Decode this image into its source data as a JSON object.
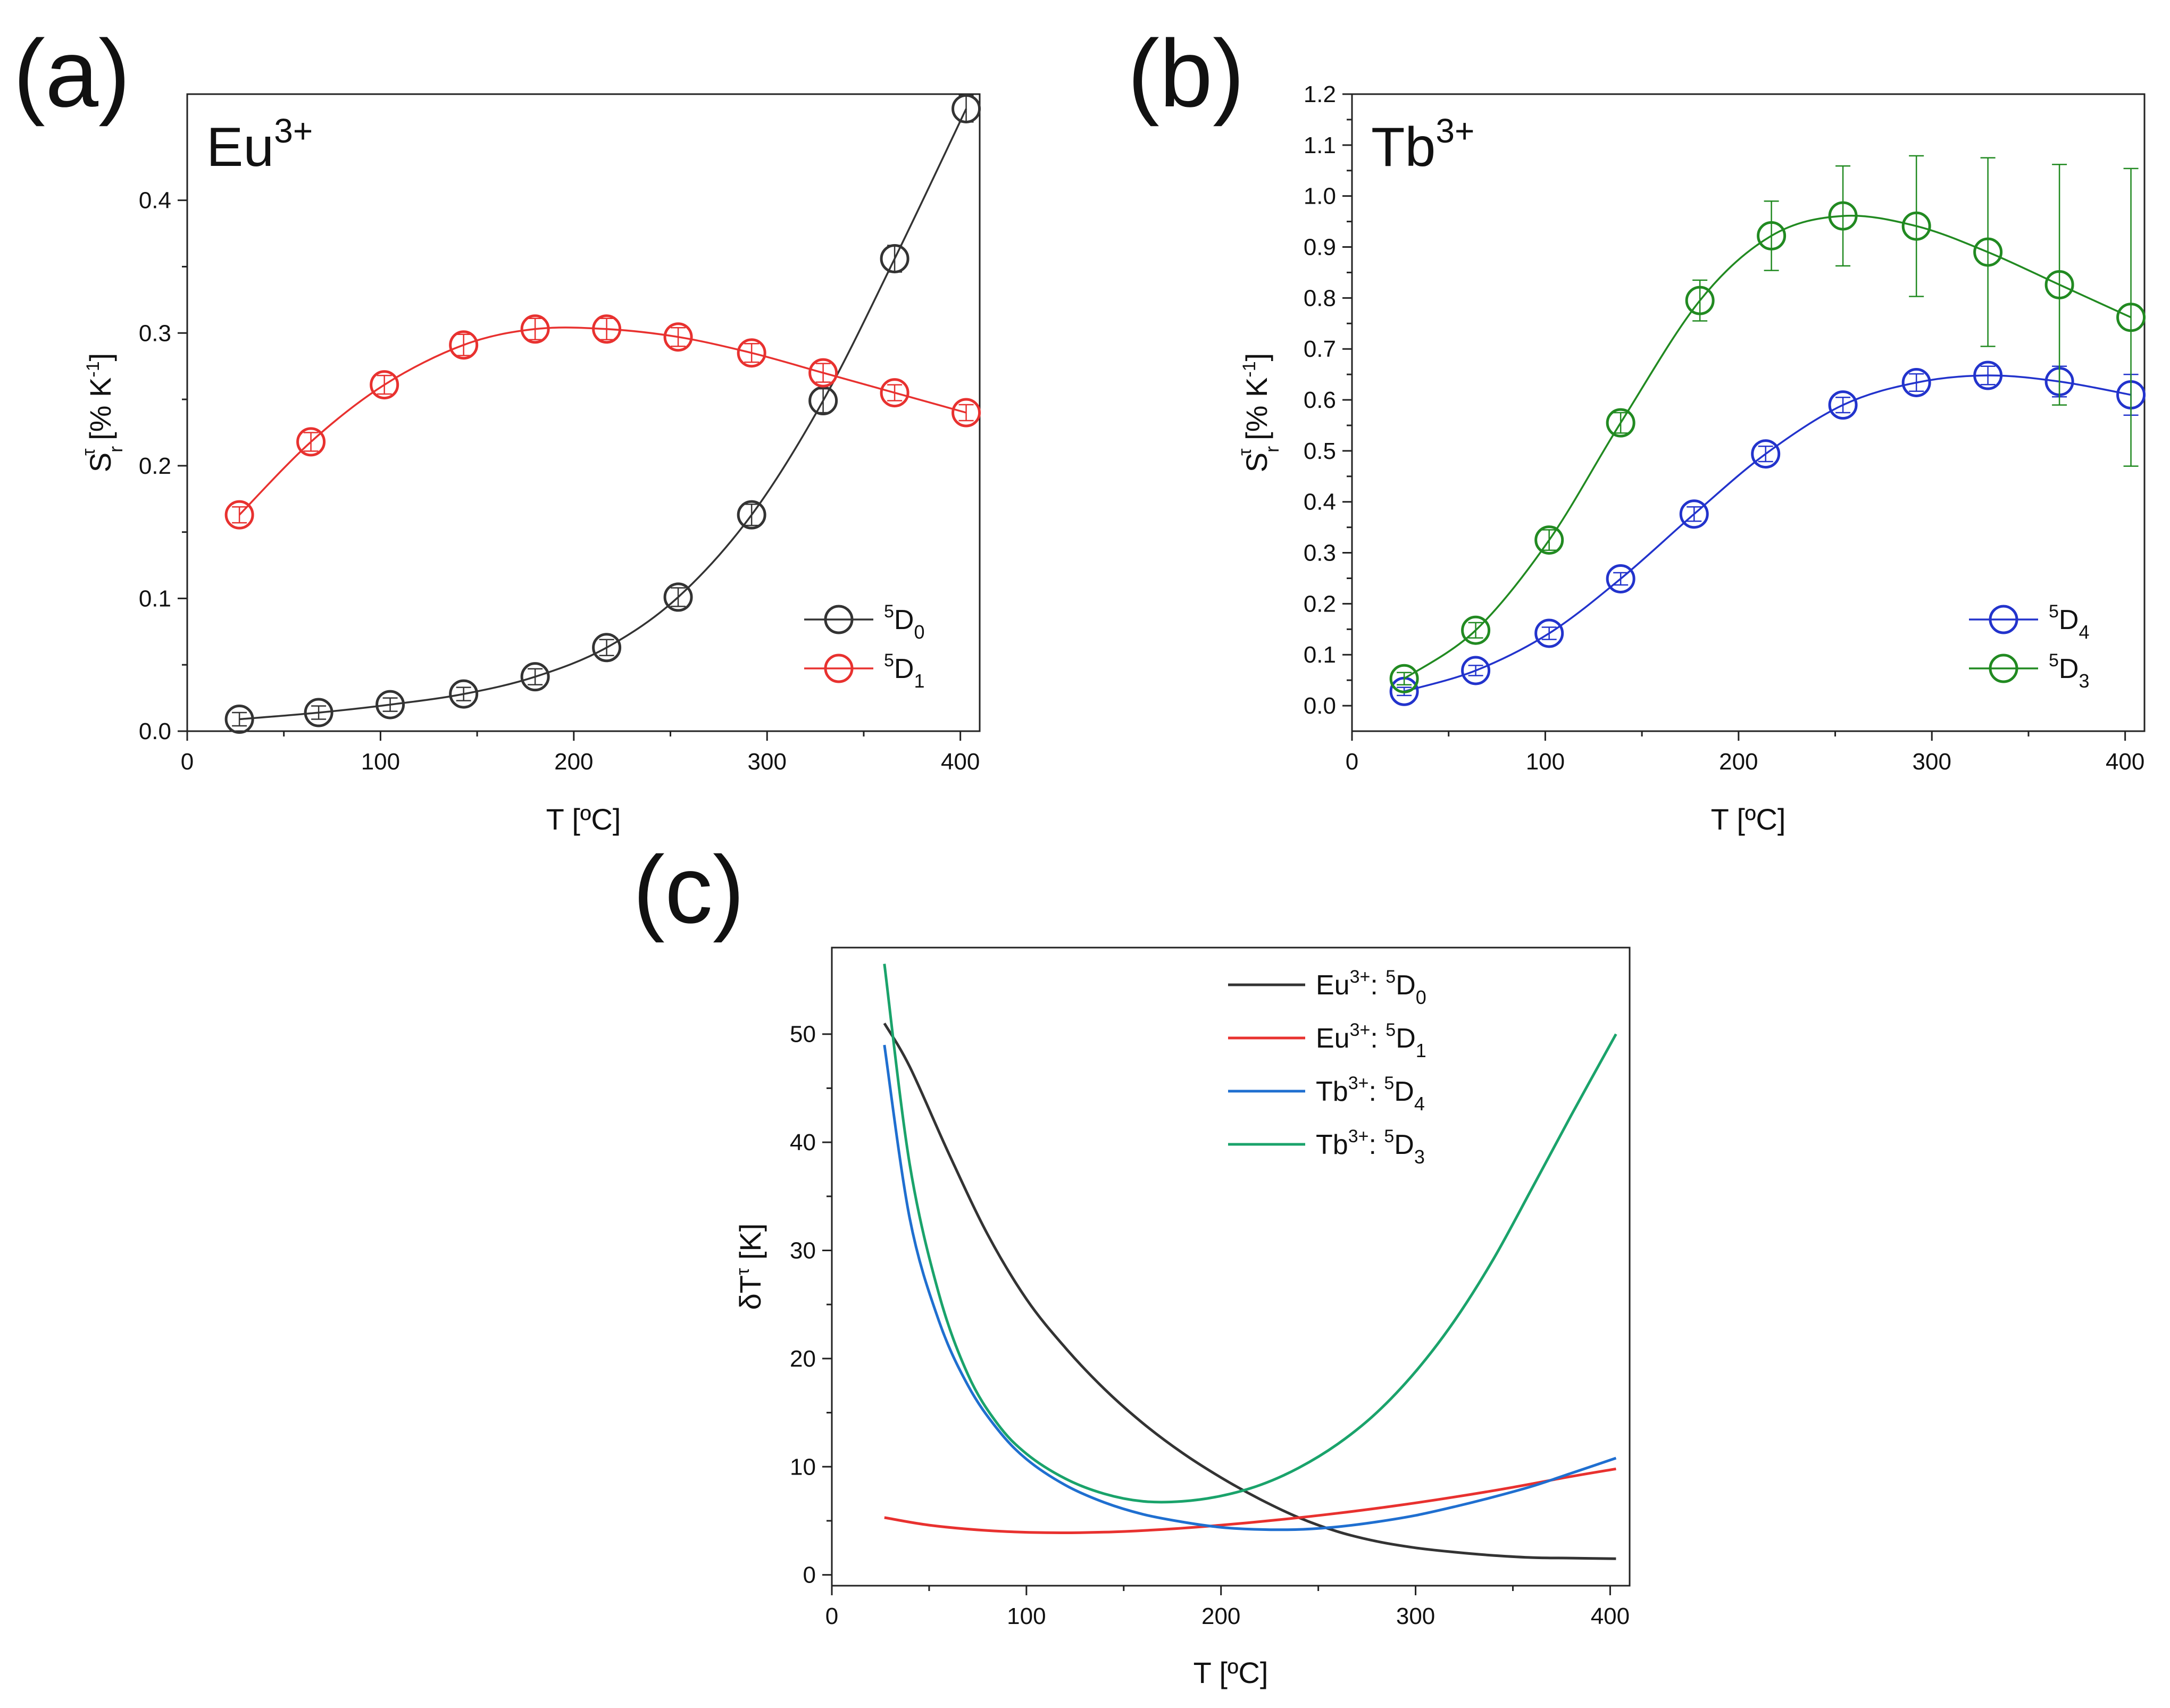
{
  "panels": {
    "a": {
      "letter": "(a)",
      "ion": "Eu",
      "ion_charge": "3+"
    },
    "b": {
      "letter": "(b)",
      "ion": "Tb",
      "ion_charge": "3+"
    },
    "c": {
      "letter": "(c)"
    }
  },
  "chart_data": [
    {
      "id": "a",
      "type": "scatter",
      "xlabel": "T [ºC]",
      "ylabel": "S_r^τ [% K^-1]",
      "xlim": [
        0,
        410
      ],
      "ylim": [
        0,
        0.48
      ],
      "xticks": [
        "0",
        "100",
        "200",
        "300",
        "400"
      ],
      "yticks": [
        "0.0",
        "0.1",
        "0.2",
        "0.3",
        "0.4"
      ],
      "legend_position": "bottom-right",
      "series": [
        {
          "name": "5D0",
          "name_pre": "5",
          "name_main": "D",
          "name_sub": "0",
          "color": "#333333",
          "x": [
            27,
            68,
            105,
            143,
            180,
            217,
            254,
            292,
            329,
            366,
            403
          ],
          "y": [
            0.009,
            0.014,
            0.02,
            0.028,
            0.041,
            0.063,
            0.101,
            0.163,
            0.249,
            0.356,
            0.469
          ],
          "err": [
            0.005,
            0.005,
            0.005,
            0.005,
            0.006,
            0.006,
            0.007,
            0.008,
            0.009,
            0.01,
            0.01
          ]
        },
        {
          "name": "5D1",
          "name_pre": "5",
          "name_main": "D",
          "name_sub": "1",
          "color": "#e8312f",
          "x": [
            27,
            64,
            102,
            143,
            180,
            217,
            254,
            292,
            329,
            366,
            403
          ],
          "y": [
            0.163,
            0.218,
            0.261,
            0.291,
            0.303,
            0.303,
            0.297,
            0.285,
            0.27,
            0.255,
            0.24
          ],
          "err": [
            0.006,
            0.007,
            0.007,
            0.008,
            0.008,
            0.008,
            0.007,
            0.007,
            0.007,
            0.006,
            0.006
          ]
        }
      ]
    },
    {
      "id": "b",
      "type": "scatter",
      "xlabel": "T [ºC]",
      "ylabel": "S_r^τ [% K^-1]",
      "xlim": [
        0,
        410
      ],
      "ylim": [
        -0.05,
        1.2
      ],
      "xticks": [
        "0",
        "100",
        "200",
        "300",
        "400"
      ],
      "yticks": [
        "0.0",
        "0.1",
        "0.2",
        "0.3",
        "0.4",
        "0.5",
        "0.6",
        "0.7",
        "0.8",
        "0.9",
        "1.0",
        "1.1",
        "1.2"
      ],
      "legend_position": "bottom-right",
      "series": [
        {
          "name": "5D4",
          "name_pre": "5",
          "name_main": "D",
          "name_sub": "4",
          "color": "#2233cc",
          "x": [
            27,
            64,
            102,
            139,
            177,
            214,
            254,
            292,
            329,
            366,
            403
          ],
          "y": [
            0.028,
            0.069,
            0.142,
            0.249,
            0.376,
            0.494,
            0.59,
            0.634,
            0.648,
            0.636,
            0.61
          ],
          "err": [
            0.008,
            0.01,
            0.012,
            0.012,
            0.014,
            0.015,
            0.015,
            0.017,
            0.018,
            0.03,
            0.04
          ]
        },
        {
          "name": "5D3",
          "name_pre": "5",
          "name_main": "D",
          "name_sub": "3",
          "color": "#218a21",
          "x": [
            27,
            64,
            102,
            139,
            180,
            217,
            254,
            292,
            329,
            366,
            403
          ],
          "y": [
            0.053,
            0.148,
            0.325,
            0.555,
            0.795,
            0.922,
            0.961,
            0.941,
            0.89,
            0.826,
            0.762
          ],
          "err": [
            0.012,
            0.015,
            0.02,
            0.02,
            0.04,
            0.068,
            0.098,
            0.138,
            0.185,
            0.236,
            0.292
          ]
        }
      ]
    },
    {
      "id": "c",
      "type": "line",
      "xlabel": "T [ºC]",
      "ylabel": "δT^τ [K]",
      "xlim": [
        0,
        410
      ],
      "ylim": [
        -1,
        58
      ],
      "xticks": [
        "0",
        "100",
        "200",
        "300",
        "400"
      ],
      "yticks": [
        "0",
        "10",
        "20",
        "30",
        "40",
        "50"
      ],
      "legend_position": "top-right",
      "series": [
        {
          "name": "Eu3+: 5D0",
          "ion": "Eu",
          "charge": "3+",
          "name_pre": "5",
          "name_main": "D",
          "name_sub": "0",
          "color": "#333333",
          "x": [
            27,
            40,
            60,
            80,
            100,
            120,
            140,
            160,
            180,
            200,
            220,
            240,
            260,
            280,
            300,
            320,
            340,
            360,
            380,
            403
          ],
          "y": [
            51.0,
            47.0,
            39.0,
            31.5,
            25.5,
            21.0,
            17.2,
            14.0,
            11.3,
            9.0,
            7.0,
            5.3,
            4.0,
            3.1,
            2.5,
            2.1,
            1.8,
            1.6,
            1.55,
            1.5
          ]
        },
        {
          "name": "Eu3+: 5D1",
          "ion": "Eu",
          "charge": "3+",
          "name_pre": "5",
          "name_main": "D",
          "name_sub": "1",
          "color": "#e8312f",
          "x": [
            27,
            50,
            80,
            110,
            140,
            170,
            200,
            230,
            260,
            290,
            320,
            350,
            380,
            403
          ],
          "y": [
            5.3,
            4.6,
            4.1,
            3.9,
            3.95,
            4.2,
            4.6,
            5.1,
            5.7,
            6.4,
            7.2,
            8.1,
            9.1,
            9.8
          ]
        },
        {
          "name": "Tb3+: 5D4",
          "ion": "Tb",
          "charge": "3+",
          "name_pre": "5",
          "name_main": "D",
          "name_sub": "4",
          "color": "#1f6fd0",
          "x": [
            27,
            40,
            55,
            70,
            85,
            100,
            120,
            140,
            160,
            180,
            200,
            220,
            240,
            260,
            280,
            300,
            320,
            340,
            360,
            380,
            403
          ],
          "y": [
            49.0,
            33.0,
            23.5,
            17.5,
            13.5,
            10.7,
            8.3,
            6.7,
            5.6,
            4.9,
            4.4,
            4.2,
            4.2,
            4.45,
            4.9,
            5.5,
            6.3,
            7.2,
            8.2,
            9.4,
            10.8
          ]
        },
        {
          "name": "Tb3+: 5D3",
          "ion": "Tb",
          "charge": "3+",
          "name_pre": "5",
          "name_main": "D",
          "name_sub": "3",
          "color": "#1aa36b",
          "x": [
            27,
            40,
            55,
            70,
            85,
            100,
            120,
            140,
            160,
            180,
            200,
            220,
            240,
            260,
            280,
            300,
            320,
            340,
            360,
            380,
            403
          ],
          "y": [
            56.5,
            38.0,
            26.0,
            18.5,
            14.0,
            11.2,
            8.9,
            7.5,
            6.8,
            6.8,
            7.3,
            8.3,
            9.9,
            12.1,
            15.0,
            18.8,
            23.5,
            29.2,
            35.8,
            42.5,
            50.0
          ]
        }
      ]
    }
  ]
}
